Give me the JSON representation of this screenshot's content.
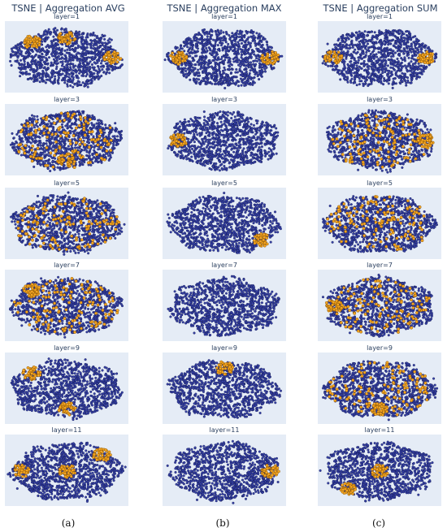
{
  "colors": {
    "background": "#e5ecf6",
    "cluster_main": "#3742a8",
    "cluster_main_edge": "#10164a",
    "highlight": "#f5a623",
    "highlight_edge": "#7a4a00",
    "title_text": "#2a3f5f"
  },
  "columns": [
    {
      "title": "TSNE | Aggregation AVG",
      "caption": "(a)"
    },
    {
      "title": "TSNE | Aggregation MAX",
      "caption": "(b)"
    },
    {
      "title": "TSNE | Aggregation SUM",
      "caption": "(c)"
    }
  ],
  "chart_data": {
    "type": "scatter",
    "chart_kind": "t-SNE embedding grid (6 rows × 3 columns)",
    "axes_visible": false,
    "grid": false,
    "series_colors": [
      "#3742a8",
      "#f5a623"
    ],
    "rows": [
      "layer=1",
      "layer=3",
      "layer=5",
      "layer=7",
      "layer=9",
      "layer=11"
    ],
    "panels": [
      {
        "column": "TSNE | Aggregation AVG",
        "label": "layer=1",
        "orange_regions": [
          "top-center",
          "top-left",
          "right"
        ]
      },
      {
        "column": "TSNE | Aggregation MAX",
        "label": "layer=1",
        "orange_regions": [
          "right",
          "left"
        ]
      },
      {
        "column": "TSNE | Aggregation SUM",
        "label": "layer=1",
        "orange_regions": [
          "right",
          "left"
        ]
      },
      {
        "column": "TSNE | Aggregation AVG",
        "label": "layer=3",
        "orange_regions": [
          "scattered",
          "bottom"
        ]
      },
      {
        "column": "TSNE | Aggregation MAX",
        "label": "layer=3",
        "orange_regions": [
          "left"
        ]
      },
      {
        "column": "TSNE | Aggregation SUM",
        "label": "layer=3",
        "orange_regions": [
          "scattered",
          "right"
        ]
      },
      {
        "column": "TSNE | Aggregation AVG",
        "label": "layer=5",
        "orange_regions": [
          "scattered"
        ]
      },
      {
        "column": "TSNE | Aggregation MAX",
        "label": "layer=5",
        "orange_regions": [
          "bottom-right"
        ]
      },
      {
        "column": "TSNE | Aggregation SUM",
        "label": "layer=5",
        "orange_regions": [
          "scattered"
        ]
      },
      {
        "column": "TSNE | Aggregation AVG",
        "label": "layer=7",
        "orange_regions": [
          "scattered",
          "top-left"
        ]
      },
      {
        "column": "TSNE | Aggregation MAX",
        "label": "layer=7",
        "orange_regions": []
      },
      {
        "column": "TSNE | Aggregation SUM",
        "label": "layer=7",
        "orange_regions": [
          "scattered",
          "left"
        ]
      },
      {
        "column": "TSNE | Aggregation AVG",
        "label": "layer=9",
        "orange_regions": [
          "top-left",
          "bottom"
        ]
      },
      {
        "column": "TSNE | Aggregation MAX",
        "label": "layer=9",
        "orange_regions": [
          "top"
        ]
      },
      {
        "column": "TSNE | Aggregation SUM",
        "label": "layer=9",
        "orange_regions": [
          "scattered",
          "bottom"
        ]
      },
      {
        "column": "TSNE | Aggregation AVG",
        "label": "layer=11",
        "orange_regions": [
          "left",
          "center",
          "top-right"
        ]
      },
      {
        "column": "TSNE | Aggregation MAX",
        "label": "layer=11",
        "orange_regions": [
          "right"
        ]
      },
      {
        "column": "TSNE | Aggregation SUM",
        "label": "layer=11",
        "orange_regions": [
          "center",
          "bottom-left"
        ]
      }
    ]
  }
}
